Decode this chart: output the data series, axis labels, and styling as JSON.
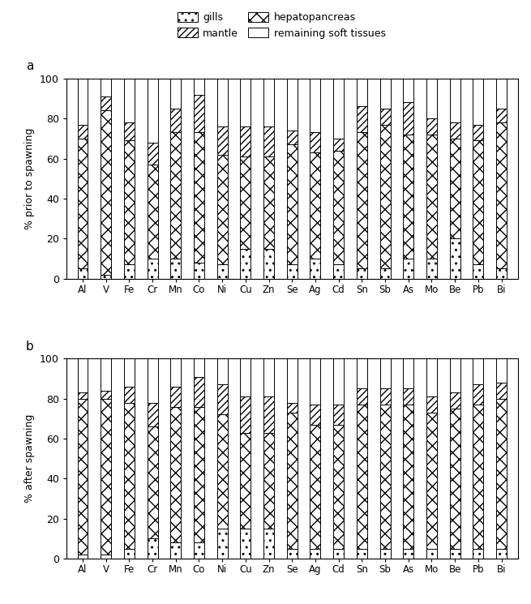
{
  "elements": [
    "Al",
    "V",
    "Fe",
    "Cr",
    "Mn",
    "Co",
    "Ni",
    "Cu",
    "Zn",
    "Se",
    "Ag",
    "Cd",
    "Sn",
    "Sb",
    "As",
    "Mo",
    "Be",
    "Pb",
    "Bi"
  ],
  "panel_a": {
    "gills": [
      5,
      2,
      7,
      10,
      10,
      8,
      7,
      15,
      15,
      7,
      10,
      7,
      5,
      5,
      10,
      10,
      20,
      7,
      5
    ],
    "hepato": [
      65,
      82,
      62,
      47,
      63,
      65,
      55,
      46,
      46,
      60,
      53,
      57,
      68,
      72,
      62,
      62,
      50,
      62,
      73
    ],
    "mantle": [
      7,
      7,
      9,
      11,
      12,
      19,
      14,
      15,
      15,
      7,
      10,
      6,
      13,
      8,
      16,
      8,
      8,
      8,
      7
    ],
    "remaining": [
      23,
      9,
      22,
      32,
      15,
      8,
      24,
      24,
      24,
      26,
      27,
      30,
      14,
      15,
      12,
      20,
      22,
      23,
      15
    ]
  },
  "panel_b": {
    "gills": [
      2,
      2,
      5,
      10,
      8,
      8,
      15,
      15,
      15,
      5,
      5,
      5,
      5,
      5,
      5,
      5,
      5,
      5,
      5
    ],
    "hepato": [
      78,
      78,
      73,
      56,
      68,
      68,
      57,
      48,
      48,
      68,
      62,
      62,
      72,
      72,
      72,
      68,
      70,
      72,
      75
    ],
    "mantle": [
      3,
      4,
      8,
      12,
      10,
      15,
      15,
      18,
      18,
      5,
      10,
      10,
      8,
      8,
      8,
      8,
      8,
      10,
      8
    ],
    "remaining": [
      17,
      16,
      14,
      22,
      14,
      9,
      13,
      19,
      19,
      22,
      23,
      23,
      15,
      15,
      15,
      19,
      17,
      13,
      12
    ]
  },
  "ylabel_a": "% prior to spawning",
  "ylabel_b": "% after spawning",
  "label_a": "a",
  "label_b": "b"
}
